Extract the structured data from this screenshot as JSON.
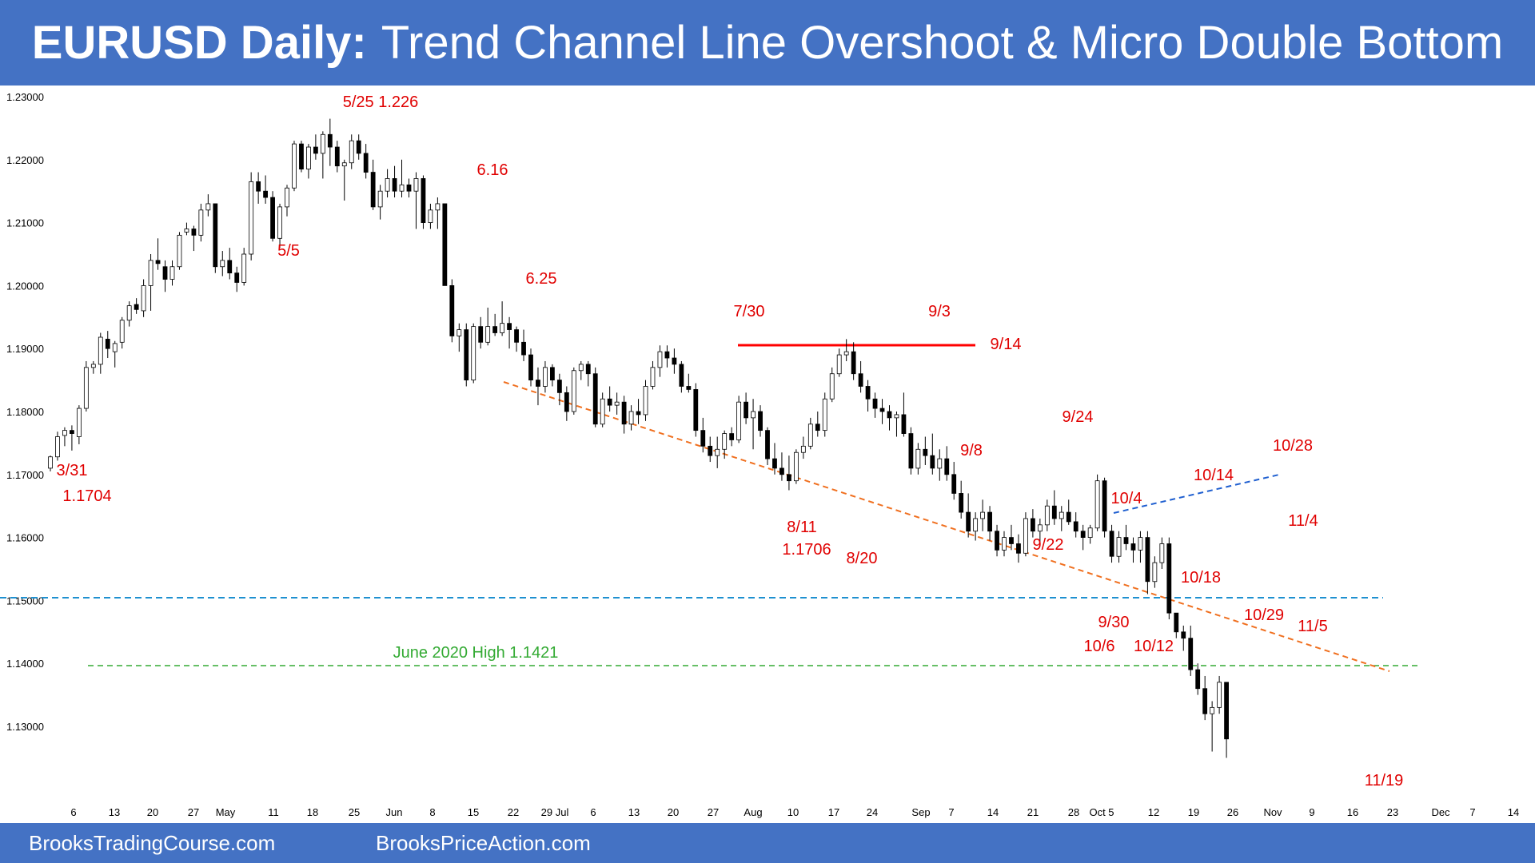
{
  "header": {
    "title_bold": "EURUSD Daily:",
    "title_rest": "Trend Channel Line Overshoot & Micro Double Bottom"
  },
  "footer": {
    "left": "BrooksTradingCourse.com",
    "right": "BrooksPriceAction.com"
  },
  "colors": {
    "header_bg": "#4472c4",
    "annotation": "#e00000",
    "resistance": "#ff0000",
    "trend_channel": "#f07020",
    "support_blue": "#1e90d0",
    "june_high": "#33aa33",
    "micro_channel": "#1f5fd0",
    "bull_candle": "#ffffff",
    "bear_candle": "#000000"
  },
  "chart_data": {
    "type": "candlestick",
    "title": "EURUSD Daily: Trend Channel Line Overshoot & Micro Double Bottom",
    "y_range": [
      1.122,
      1.232
    ],
    "y_ticks": [
      "1.13000",
      "1.14000",
      "1.15000",
      "1.16000",
      "1.17000",
      "1.18000",
      "1.19000",
      "1.20000",
      "1.21000",
      "1.22000",
      "1.23000"
    ],
    "x_ticks": [
      "6",
      "13",
      "20",
      "27",
      "May",
      "11",
      "18",
      "25",
      "Jun",
      "8",
      "15",
      "22",
      "29 Jul",
      "6",
      "13",
      "20",
      "27",
      "Aug",
      "10",
      "17",
      "24",
      "Sep",
      "7",
      "14",
      "21",
      "28",
      "Oct 5",
      "12",
      "19",
      "26",
      "Nov",
      "9",
      "16",
      "23",
      "Dec",
      "7",
      "14"
    ],
    "ohlc": [
      [
        1.171,
        1.173,
        1.1705,
        1.1728
      ],
      [
        1.1728,
        1.1768,
        1.1722,
        1.176
      ],
      [
        1.1762,
        1.1775,
        1.1745,
        1.177
      ],
      [
        1.177,
        1.1778,
        1.1738,
        1.1765
      ],
      [
        1.176,
        1.181,
        1.1748,
        1.1805
      ],
      [
        1.1805,
        1.188,
        1.18,
        1.187
      ],
      [
        1.187,
        1.188,
        1.186,
        1.1875
      ],
      [
        1.1875,
        1.1925,
        1.186,
        1.1918
      ],
      [
        1.1915,
        1.1928,
        1.1885,
        1.19
      ],
      [
        1.1895,
        1.1912,
        1.187,
        1.1908
      ],
      [
        1.191,
        1.195,
        1.19,
        1.1945
      ],
      [
        1.1945,
        1.1975,
        1.1935,
        1.1968
      ],
      [
        1.197,
        1.198,
        1.1955,
        1.1962
      ],
      [
        1.196,
        1.201,
        1.195,
        1.2
      ],
      [
        1.2,
        1.205,
        1.196,
        1.204
      ],
      [
        1.204,
        1.2075,
        1.2025,
        1.2035
      ],
      [
        1.203,
        1.204,
        1.199,
        1.201
      ],
      [
        1.201,
        1.204,
        1.2,
        1.203
      ],
      [
        1.203,
        1.2085,
        1.2025,
        1.208
      ],
      [
        1.2085,
        1.21,
        1.208,
        1.209
      ],
      [
        1.209,
        1.2095,
        1.2055,
        1.208
      ],
      [
        1.208,
        1.213,
        1.207,
        1.212
      ],
      [
        1.212,
        1.2145,
        1.211,
        1.213
      ],
      [
        1.213,
        1.213,
        1.202,
        1.203
      ],
      [
        1.203,
        1.2055,
        1.2015,
        1.204
      ],
      [
        1.204,
        1.206,
        1.201,
        1.202
      ],
      [
        1.202,
        1.203,
        1.199,
        1.2005
      ],
      [
        1.2005,
        1.206,
        1.2,
        1.205
      ],
      [
        1.205,
        1.218,
        1.204,
        1.2165
      ],
      [
        1.2165,
        1.218,
        1.213,
        1.215
      ],
      [
        1.215,
        1.2175,
        1.213,
        1.214
      ],
      [
        1.214,
        1.215,
        1.207,
        1.2075
      ],
      [
        1.2075,
        1.213,
        1.206,
        1.2125
      ],
      [
        1.2125,
        1.216,
        1.211,
        1.2155
      ],
      [
        1.2155,
        1.223,
        1.215,
        1.2225
      ],
      [
        1.2225,
        1.223,
        1.218,
        1.2185
      ],
      [
        1.2185,
        1.2225,
        1.217,
        1.222
      ],
      [
        1.222,
        1.224,
        1.22,
        1.221
      ],
      [
        1.221,
        1.2245,
        1.217,
        1.224
      ],
      [
        1.224,
        1.2265,
        1.219,
        1.222
      ],
      [
        1.222,
        1.223,
        1.218,
        1.219
      ],
      [
        1.219,
        1.22,
        1.2135,
        1.2195
      ],
      [
        1.2195,
        1.224,
        1.2185,
        1.223
      ],
      [
        1.223,
        1.224,
        1.22,
        1.221
      ],
      [
        1.221,
        1.2225,
        1.217,
        1.218
      ],
      [
        1.218,
        1.22,
        1.212,
        1.2125
      ],
      [
        1.2125,
        1.216,
        1.2105,
        1.215
      ],
      [
        1.215,
        1.2185,
        1.214,
        1.217
      ],
      [
        1.217,
        1.219,
        1.214,
        1.215
      ],
      [
        1.215,
        1.22,
        1.214,
        1.216
      ],
      [
        1.216,
        1.217,
        1.214,
        1.215
      ],
      [
        1.215,
        1.218,
        1.209,
        1.217
      ],
      [
        1.217,
        1.2175,
        1.209,
        1.21
      ],
      [
        1.21,
        1.213,
        1.209,
        1.212
      ],
      [
        1.212,
        1.214,
        1.209,
        1.213
      ],
      [
        1.213,
        1.213,
        1.2,
        1.2
      ],
      [
        1.2,
        1.201,
        1.191,
        1.192
      ],
      [
        1.192,
        1.194,
        1.1895,
        1.193
      ],
      [
        1.193,
        1.194,
        1.184,
        1.185
      ],
      [
        1.185,
        1.194,
        1.1845,
        1.1935
      ],
      [
        1.1935,
        1.195,
        1.19,
        1.191
      ],
      [
        1.191,
        1.1965,
        1.1905,
        1.1935
      ],
      [
        1.1935,
        1.1955,
        1.192,
        1.1925
      ],
      [
        1.1925,
        1.1975,
        1.192,
        1.194
      ],
      [
        1.194,
        1.195,
        1.19,
        1.193
      ],
      [
        1.193,
        1.1935,
        1.1895,
        1.191
      ],
      [
        1.191,
        1.193,
        1.188,
        1.189
      ],
      [
        1.189,
        1.19,
        1.184,
        1.185
      ],
      [
        1.185,
        1.187,
        1.181,
        1.184
      ],
      [
        1.184,
        1.188,
        1.183,
        1.187
      ],
      [
        1.187,
        1.1875,
        1.184,
        1.185
      ],
      [
        1.185,
        1.186,
        1.181,
        1.183
      ],
      [
        1.183,
        1.184,
        1.1785,
        1.18
      ],
      [
        1.18,
        1.187,
        1.1795,
        1.1865
      ],
      [
        1.1865,
        1.188,
        1.185,
        1.1875
      ],
      [
        1.1875,
        1.188,
        1.184,
        1.186
      ],
      [
        1.186,
        1.187,
        1.1775,
        1.178
      ],
      [
        1.178,
        1.183,
        1.1775,
        1.182
      ],
      [
        1.182,
        1.184,
        1.18,
        1.181
      ],
      [
        1.181,
        1.183,
        1.1795,
        1.1815
      ],
      [
        1.1815,
        1.1825,
        1.1765,
        1.178
      ],
      [
        1.178,
        1.181,
        1.177,
        1.18
      ],
      [
        1.18,
        1.182,
        1.178,
        1.1795
      ],
      [
        1.1795,
        1.185,
        1.1785,
        1.184
      ],
      [
        1.184,
        1.188,
        1.1835,
        1.187
      ],
      [
        1.187,
        1.1905,
        1.1855,
        1.1895
      ],
      [
        1.1895,
        1.1905,
        1.187,
        1.1885
      ],
      [
        1.1885,
        1.19,
        1.186,
        1.1875
      ],
      [
        1.1875,
        1.188,
        1.183,
        1.184
      ],
      [
        1.184,
        1.186,
        1.183,
        1.1835
      ],
      [
        1.1835,
        1.1845,
        1.176,
        1.177
      ],
      [
        1.177,
        1.179,
        1.1735,
        1.1745
      ],
      [
        1.1745,
        1.176,
        1.172,
        1.173
      ],
      [
        1.173,
        1.176,
        1.171,
        1.174
      ],
      [
        1.174,
        1.177,
        1.1725,
        1.1765
      ],
      [
        1.1765,
        1.1775,
        1.1745,
        1.1755
      ],
      [
        1.1755,
        1.1825,
        1.175,
        1.1815
      ],
      [
        1.1815,
        1.183,
        1.178,
        1.179
      ],
      [
        1.179,
        1.182,
        1.174,
        1.18
      ],
      [
        1.18,
        1.181,
        1.176,
        1.177
      ],
      [
        1.177,
        1.1775,
        1.1715,
        1.1725
      ],
      [
        1.1725,
        1.175,
        1.17,
        1.171
      ],
      [
        1.171,
        1.1735,
        1.169,
        1.17
      ],
      [
        1.17,
        1.173,
        1.1675,
        1.169
      ],
      [
        1.169,
        1.174,
        1.1685,
        1.1735
      ],
      [
        1.1735,
        1.176,
        1.1725,
        1.1745
      ],
      [
        1.1745,
        1.179,
        1.174,
        1.178
      ],
      [
        1.178,
        1.18,
        1.176,
        1.177
      ],
      [
        1.177,
        1.183,
        1.176,
        1.182
      ],
      [
        1.182,
        1.187,
        1.1815,
        1.186
      ],
      [
        1.186,
        1.19,
        1.1855,
        1.189
      ],
      [
        1.189,
        1.1915,
        1.188,
        1.1895
      ],
      [
        1.1895,
        1.191,
        1.185,
        1.186
      ],
      [
        1.186,
        1.188,
        1.183,
        1.184
      ],
      [
        1.184,
        1.185,
        1.18,
        1.182
      ],
      [
        1.182,
        1.183,
        1.179,
        1.1805
      ],
      [
        1.1805,
        1.182,
        1.178,
        1.18
      ],
      [
        1.18,
        1.181,
        1.177,
        1.179
      ],
      [
        1.179,
        1.18,
        1.176,
        1.1795
      ],
      [
        1.1795,
        1.183,
        1.176,
        1.1765
      ],
      [
        1.1765,
        1.1775,
        1.17,
        1.171
      ],
      [
        1.171,
        1.175,
        1.17,
        1.174
      ],
      [
        1.174,
        1.176,
        1.1715,
        1.173
      ],
      [
        1.173,
        1.1765,
        1.17,
        1.171
      ],
      [
        1.171,
        1.174,
        1.169,
        1.1725
      ],
      [
        1.1725,
        1.1745,
        1.169,
        1.17
      ],
      [
        1.17,
        1.172,
        1.166,
        1.167
      ],
      [
        1.167,
        1.169,
        1.163,
        1.164
      ],
      [
        1.164,
        1.167,
        1.16,
        1.161
      ],
      [
        1.161,
        1.164,
        1.1595,
        1.163
      ],
      [
        1.163,
        1.166,
        1.161,
        1.164
      ],
      [
        1.164,
        1.165,
        1.1595,
        1.161
      ],
      [
        1.161,
        1.162,
        1.157,
        1.158
      ],
      [
        1.158,
        1.161,
        1.157,
        1.16
      ],
      [
        1.16,
        1.162,
        1.158,
        1.159
      ],
      [
        1.159,
        1.1605,
        1.156,
        1.1575
      ],
      [
        1.1575,
        1.164,
        1.157,
        1.163
      ],
      [
        1.163,
        1.1645,
        1.16,
        1.161
      ],
      [
        1.161,
        1.163,
        1.159,
        1.162
      ],
      [
        1.162,
        1.166,
        1.161,
        1.165
      ],
      [
        1.165,
        1.1675,
        1.162,
        1.163
      ],
      [
        1.163,
        1.165,
        1.161,
        1.164
      ],
      [
        1.164,
        1.166,
        1.162,
        1.1625
      ],
      [
        1.1625,
        1.164,
        1.16,
        1.161
      ],
      [
        1.161,
        1.162,
        1.158,
        1.16
      ],
      [
        1.16,
        1.162,
        1.159,
        1.1615
      ],
      [
        1.1615,
        1.17,
        1.161,
        1.169
      ],
      [
        1.169,
        1.1695,
        1.16,
        1.161
      ],
      [
        1.161,
        1.162,
        1.156,
        1.157
      ],
      [
        1.157,
        1.161,
        1.156,
        1.16
      ],
      [
        1.16,
        1.162,
        1.158,
        1.159
      ],
      [
        1.159,
        1.16,
        1.156,
        1.158
      ],
      [
        1.158,
        1.161,
        1.156,
        1.16
      ],
      [
        1.16,
        1.161,
        1.151,
        1.153
      ],
      [
        1.153,
        1.157,
        1.152,
        1.156
      ],
      [
        1.156,
        1.16,
        1.155,
        1.159
      ],
      [
        1.159,
        1.16,
        1.147,
        1.148
      ],
      [
        1.148,
        1.148,
        1.144,
        1.145
      ],
      [
        1.145,
        1.146,
        1.142,
        1.144
      ],
      [
        1.144,
        1.146,
        1.138,
        1.139
      ],
      [
        1.139,
        1.14,
        1.135,
        1.136
      ],
      [
        1.136,
        1.138,
        1.131,
        1.132
      ],
      [
        1.132,
        1.134,
        1.126,
        1.133
      ],
      [
        1.133,
        1.138,
        1.132,
        1.137
      ],
      [
        1.137,
        1.137,
        1.125,
        1.128
      ]
    ],
    "annotations": [
      "5/25 1.226",
      "6.16",
      "5/5",
      "6.25",
      "7/30",
      "9/3",
      "9/14",
      "9/24",
      "9/8",
      "3/31",
      "1.1704",
      "8/11",
      "1.1706",
      "8/20",
      "9/22",
      "10/28",
      "10/14",
      "10/4",
      "11/4",
      "10/18",
      "9/30",
      "10/6",
      "10/12",
      "10/29",
      "11/5",
      "11/19"
    ],
    "reference_lines": [
      {
        "label": "June 2020 High 1.1421",
        "value": 1.14
      }
    ]
  }
}
